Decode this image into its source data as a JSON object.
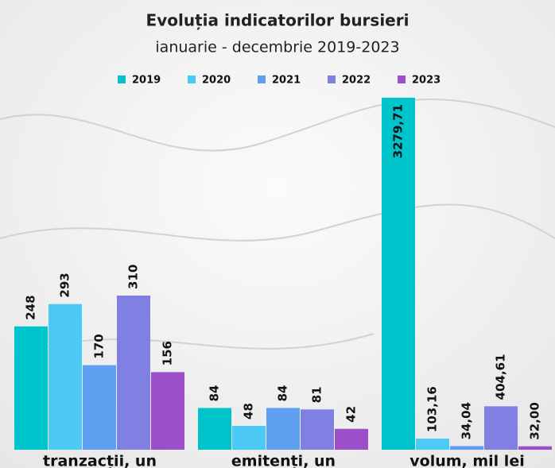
{
  "chart_data": {
    "type": "bar",
    "title": "Evoluția indicatorilor bursieri",
    "subtitle": "ianuarie - decembrie 2019-2023",
    "categories": [
      "tranzacții, un",
      "emitenți, un",
      "volum, mil lei"
    ],
    "series": [
      {
        "name": "2019",
        "color": "#00c4cc",
        "values": [
          248,
          84,
          3279.71
        ],
        "value_labels": [
          "248",
          "84",
          "3279,71"
        ]
      },
      {
        "name": "2020",
        "color": "#4cc9f5",
        "values": [
          293,
          48,
          103.16
        ],
        "value_labels": [
          "293",
          "48",
          "103,16"
        ]
      },
      {
        "name": "2021",
        "color": "#5e9ff0",
        "values": [
          170,
          84,
          34.04
        ],
        "value_labels": [
          "170",
          "84",
          "34,04"
        ]
      },
      {
        "name": "2022",
        "color": "#8080e2",
        "values": [
          310,
          81,
          404.61
        ],
        "value_labels": [
          "310",
          "81",
          "404,61"
        ]
      },
      {
        "name": "2023",
        "color": "#9b4fc8",
        "values": [
          156,
          42,
          32.0
        ],
        "value_labels": [
          "156",
          "42",
          "32,00"
        ]
      }
    ],
    "legend": "top"
  }
}
